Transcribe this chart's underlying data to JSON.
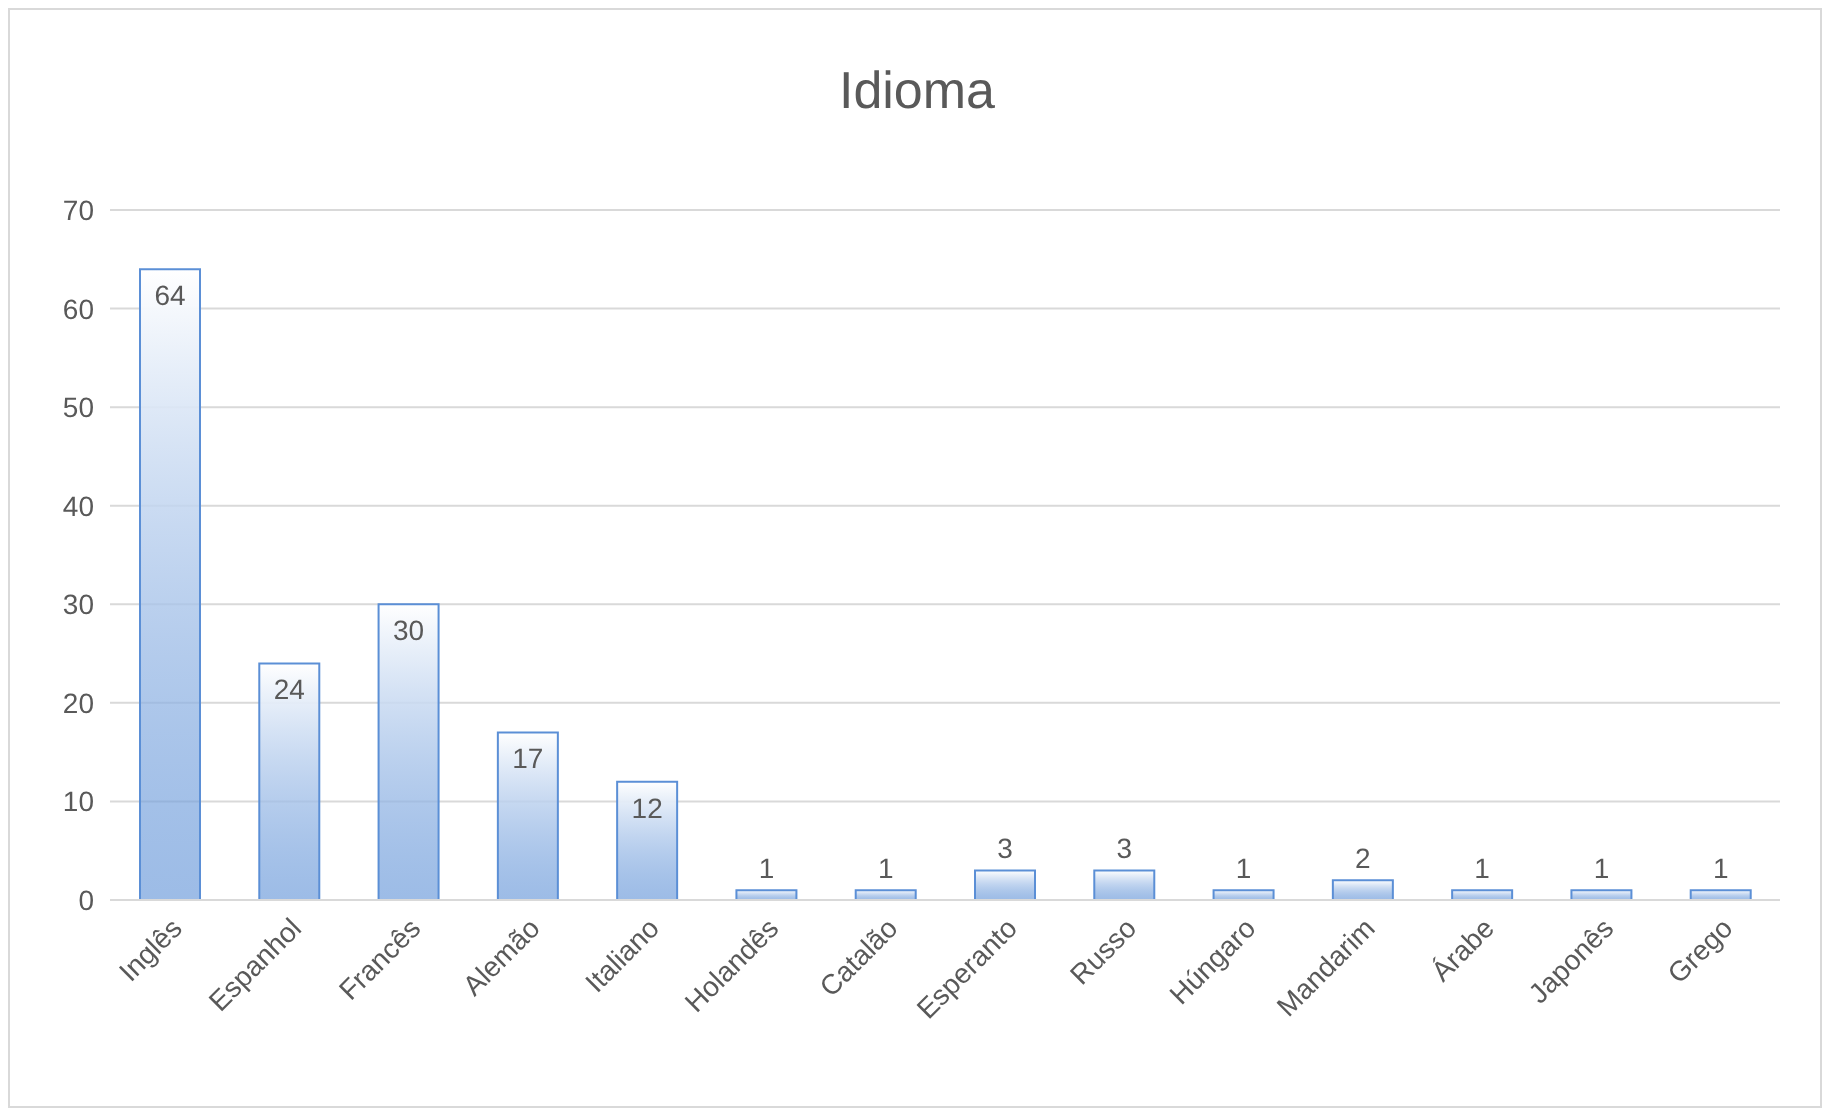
{
  "chart_data": {
    "type": "bar",
    "title": "Idioma",
    "categories": [
      "Inglês",
      "Espanhol",
      "Francês",
      "Alemão",
      "Italiano",
      "Holandês",
      "Catalão",
      "Esperanto",
      "Russo",
      "Húngaro",
      "Mandarim",
      "Árabe",
      "Japonês",
      "Grego"
    ],
    "values": [
      64,
      24,
      30,
      17,
      12,
      1,
      1,
      3,
      3,
      1,
      2,
      1,
      1,
      1
    ],
    "color": "#5b8fd6",
    "ylim": [
      0,
      70
    ],
    "yticks": [
      0,
      10,
      20,
      30,
      40,
      50,
      60,
      70
    ],
    "grid": "y",
    "data_labels": true,
    "legend": false
  }
}
